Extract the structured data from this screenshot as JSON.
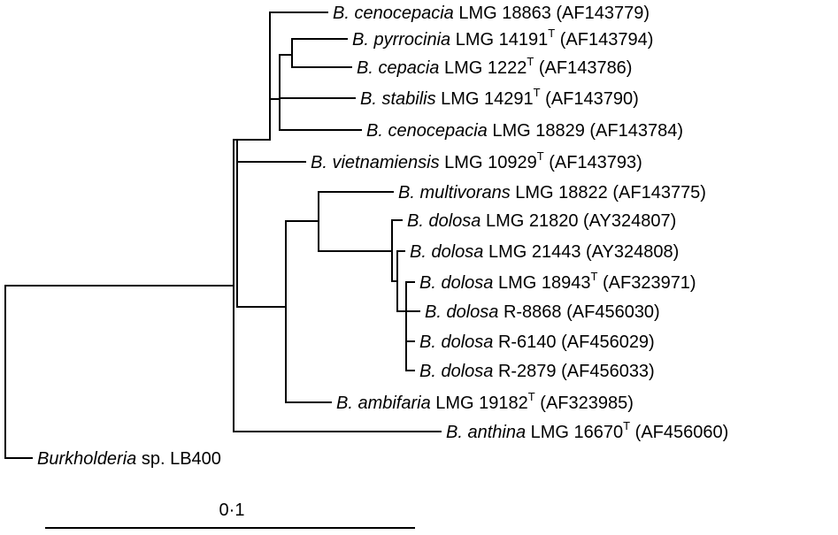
{
  "taxa": [
    {
      "genus": "B.",
      "species": "cenocepacia",
      "strain": "LMG 18863",
      "type_strain": false,
      "accession": "(AF143779)"
    },
    {
      "genus": "B.",
      "species": "pyrrocinia",
      "strain": "LMG 14191",
      "type_strain": true,
      "accession": "(AF143794)"
    },
    {
      "genus": "B.",
      "species": "cepacia",
      "strain": "LMG 1222",
      "type_strain": true,
      "accession": "(AF143786)"
    },
    {
      "genus": "B.",
      "species": "stabilis",
      "strain": "LMG 14291",
      "type_strain": true,
      "accession": "(AF143790)"
    },
    {
      "genus": "B.",
      "species": "cenocepacia",
      "strain": "LMG 18829",
      "type_strain": false,
      "accession": "(AF143784)"
    },
    {
      "genus": "B.",
      "species": "vietnamiensis",
      "strain": "LMG 10929",
      "type_strain": true,
      "accession": "(AF143793)"
    },
    {
      "genus": "B.",
      "species": "multivorans",
      "strain": "LMG 18822",
      "type_strain": false,
      "accession": "(AF143775)"
    },
    {
      "genus": "B.",
      "species": "dolosa",
      "strain": "LMG 21820",
      "type_strain": false,
      "accession": "(AY324807)"
    },
    {
      "genus": "B.",
      "species": "dolosa",
      "strain": "LMG 21443",
      "type_strain": false,
      "accession": "(AY324808)"
    },
    {
      "genus": "B.",
      "species": "dolosa",
      "strain": "LMG 18943",
      "type_strain": true,
      "accession": "(AF323971)"
    },
    {
      "genus": "B.",
      "species": "dolosa",
      "strain": "R-8868",
      "type_strain": false,
      "accession": "(AF456030)"
    },
    {
      "genus": "B.",
      "species": "dolosa",
      "strain": "R-6140",
      "type_strain": false,
      "accession": "(AF456029)"
    },
    {
      "genus": "B.",
      "species": "dolosa",
      "strain": "R-2879",
      "type_strain": false,
      "accession": "(AF456033)"
    },
    {
      "genus": "B.",
      "species": "ambifaria",
      "strain": "LMG 19182",
      "type_strain": true,
      "accession": "(AF323985)"
    },
    {
      "genus": "B.",
      "species": "anthina",
      "strain": "LMG 16670",
      "type_strain": true,
      "accession": "(AF456060)"
    },
    {
      "genus": "Burkholderia",
      "species": "",
      "strain": "sp. LB400",
      "type_strain": false,
      "accession": ""
    }
  ],
  "type_marker": "T",
  "scale_bar": {
    "label": "0·1",
    "value": 0.1
  },
  "colors": {
    "line": "#000000",
    "text": "#000000",
    "background": "#ffffff"
  }
}
